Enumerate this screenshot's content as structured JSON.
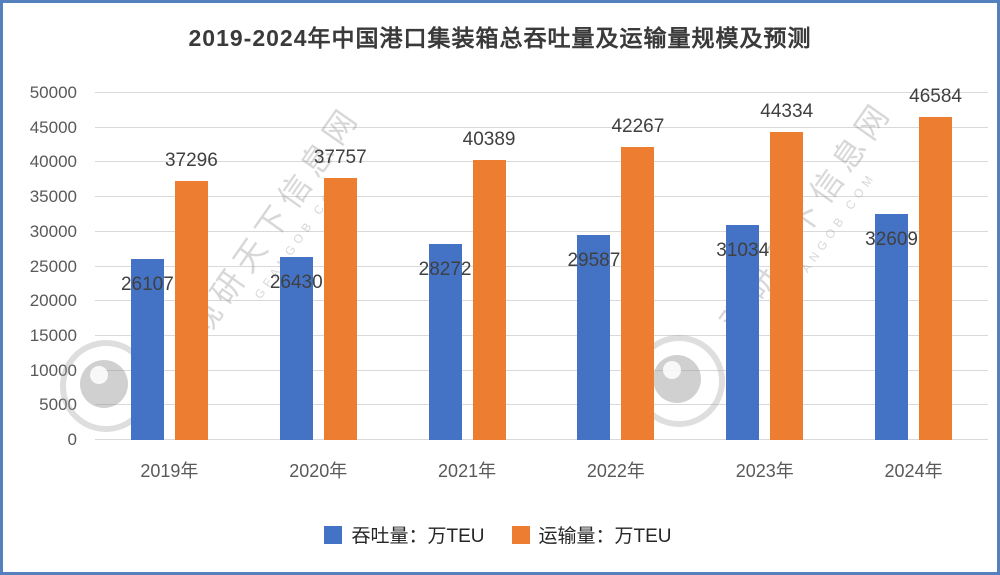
{
  "title": "2019-2024年中国港口集装箱总吞吐量及运输量规模及预测",
  "watermark": {
    "cn": "观研天下信息网",
    "en": "GFANGOB COM"
  },
  "colors": {
    "border": "#5580BE",
    "grid": "#D9D9D9",
    "axis_text": "#595959",
    "label_text": "#404040",
    "title_text": "#3A3A3A",
    "series_blue": "#4472C4",
    "series_orange": "#ED7D31"
  },
  "chart_data": {
    "type": "bar",
    "title": "2019-2024年中国港口集装箱总吞吐量及运输量规模及预测",
    "categories": [
      "2019年",
      "2020年",
      "2021年",
      "2022年",
      "2023年",
      "2024年"
    ],
    "series": [
      {
        "name": "吞吐量：万TEU",
        "color": "#4472C4",
        "values": [
          26107,
          26430,
          28272,
          29587,
          31034,
          32609
        ],
        "label_placement": "inside-end"
      },
      {
        "name": "运输量：万TEU",
        "color": "#ED7D31",
        "values": [
          37296,
          37757,
          40389,
          42267,
          44334,
          46584
        ],
        "label_placement": "outside-end"
      }
    ],
    "xlabel": "",
    "ylabel": "",
    "ylim": [
      0,
      50000
    ],
    "yticks": [
      0,
      5000,
      10000,
      15000,
      20000,
      25000,
      30000,
      35000,
      40000,
      45000,
      50000
    ],
    "grid": true,
    "legend_position": "bottom"
  }
}
